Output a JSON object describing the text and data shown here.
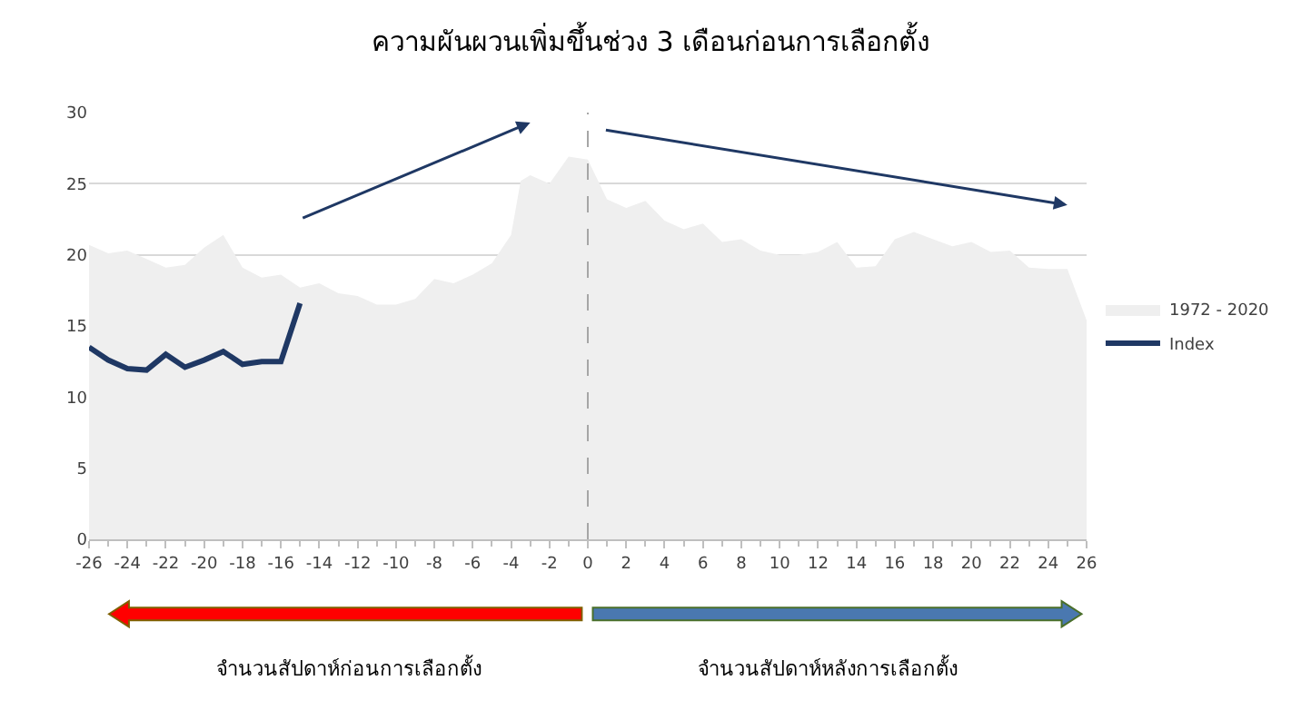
{
  "chart_data": {
    "type": "area",
    "title": "ความผันผวนเพิ่มขึ้นช่วง 3 เดือนก่อนการเลือกตั้ง",
    "x": [
      -26,
      -25,
      -24,
      -23,
      -22,
      -21,
      -20,
      -19,
      -18,
      -17,
      -16,
      -15,
      -14,
      -13,
      -12,
      -11,
      -10,
      -9,
      -8,
      -7,
      -6,
      -5,
      -4,
      -3.5,
      -3,
      -2,
      -1,
      0,
      1,
      2,
      3,
      4,
      5,
      6,
      7,
      8,
      9,
      10,
      11,
      12,
      13,
      14,
      15,
      16,
      17,
      18,
      19,
      20,
      21,
      22,
      23,
      24,
      25,
      26
    ],
    "series": [
      {
        "name": "1972 - 2020",
        "color": "#efefef",
        "values": [
          20.7,
          20.1,
          20.3,
          19.7,
          19.1,
          19.3,
          20.5,
          21.4,
          19.1,
          18.4,
          18.6,
          17.7,
          18.0,
          17.3,
          17.1,
          16.5,
          16.5,
          16.9,
          18.3,
          18.0,
          18.6,
          19.4,
          21.4,
          25.2,
          25.6,
          25.0,
          26.9,
          26.7,
          23.9,
          23.3,
          23.8,
          22.4,
          21.8,
          22.2,
          20.9,
          21.1,
          20.3,
          20.0,
          20.0,
          20.2,
          20.9,
          19.1,
          19.2,
          21.1,
          21.6,
          21.1,
          20.6,
          20.9,
          20.2,
          20.3,
          19.1,
          19.0,
          19.0,
          15.4
        ]
      },
      {
        "name": "Index",
        "type": "line",
        "color": "#1f3864",
        "x": [
          -26,
          -25,
          -24,
          -23,
          -22,
          -21,
          -20,
          -19,
          -18,
          -17,
          -16,
          -15
        ],
        "values": [
          13.5,
          12.6,
          12.0,
          11.9,
          13.0,
          12.1,
          12.6,
          13.2,
          12.3,
          12.5,
          12.5,
          16.6
        ]
      }
    ],
    "xlim": [
      -26,
      26
    ],
    "xticks": [
      -26,
      -24,
      -22,
      -20,
      -18,
      -16,
      -14,
      -12,
      -10,
      -8,
      -6,
      -4,
      -2,
      0,
      2,
      4,
      6,
      8,
      10,
      12,
      14,
      16,
      18,
      20,
      22,
      24,
      26
    ],
    "ylim": [
      0,
      30
    ],
    "yticks": [
      0,
      5,
      10,
      15,
      20,
      25,
      30
    ],
    "grid": "y",
    "legend": "right",
    "ref_lines": [
      {
        "axis": "x",
        "value": 0,
        "label": null,
        "color": "#a6a6a6",
        "line_style": "dashed"
      }
    ],
    "annotations": [
      "จำนวนสัปดาห์ก่อนการเลือกตั้ง",
      "จำนวนสัปดาห์หลังการเลือกตั้ง"
    ]
  }
}
